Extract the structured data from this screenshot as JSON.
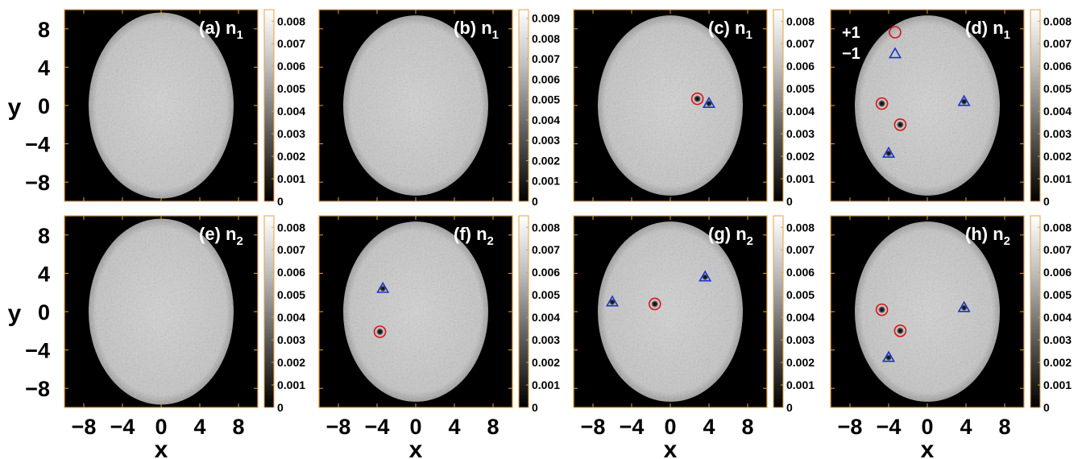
{
  "chart_data": {
    "type": "heatmap",
    "figure_layout": "2 rows x 4 columns",
    "colormap": "gray (black to white)",
    "frame_color": "#e8a33c",
    "x_axis_label": "x",
    "y_axis_label": "y",
    "xlim": [
      -10,
      10
    ],
    "ylim": [
      -10,
      10
    ],
    "x_ticks": [
      -8,
      -4,
      0,
      4,
      8
    ],
    "y_ticks": [
      8,
      4,
      0,
      -4,
      -8
    ],
    "x_tick_labels": [
      "−8",
      "−4",
      "0",
      "4",
      "8"
    ],
    "y_tick_labels": [
      "8",
      "4",
      "0",
      "−4",
      "−8"
    ],
    "legend": [
      {
        "label": "+1",
        "marker": "circle",
        "color": "#dd1111"
      },
      {
        "label": "−1",
        "marker": "triangle",
        "color": "#1a33cc"
      }
    ],
    "panels": [
      {
        "id": "a",
        "label": "(a) n",
        "sub": "1",
        "ellipse": {
          "cx": 0,
          "cy": 0,
          "rx": 7.5,
          "ry": 9.7
        },
        "colorbar_ticks": [
          "0.008",
          "0.007",
          "0.006",
          "0.005",
          "0.004",
          "0.003",
          "0.002",
          "0.001",
          "0"
        ],
        "vortices": [],
        "antivortices": []
      },
      {
        "id": "b",
        "label": "(b) n",
        "sub": "1",
        "ellipse": {
          "cx": 0,
          "cy": 0,
          "rx": 7.5,
          "ry": 9.4
        },
        "colorbar_ticks": [
          "0.009",
          "0.008",
          "0.007",
          "0.006",
          "0.005",
          "0.004",
          "0.003",
          "0.002",
          "0.001",
          "0"
        ],
        "vortices": [],
        "antivortices": []
      },
      {
        "id": "c",
        "label": "(c) n",
        "sub": "1",
        "ellipse": {
          "cx": 0,
          "cy": 0,
          "rx": 7.5,
          "ry": 9.4
        },
        "colorbar_ticks": [
          "0.008",
          "0.007",
          "0.006",
          "0.005",
          "0.004",
          "0.003",
          "0.002",
          "0.001",
          "0"
        ],
        "vortices": [
          [
            2.8,
            0.7
          ]
        ],
        "antivortices": [
          [
            4.0,
            0.2
          ]
        ]
      },
      {
        "id": "d",
        "label": "(d) n",
        "sub": "1",
        "ellipse": {
          "cx": 0,
          "cy": 0,
          "rx": 7.5,
          "ry": 9.4
        },
        "colorbar_ticks": [
          "0.008",
          "0.007",
          "0.006",
          "0.005",
          "0.004",
          "0.003",
          "0.002",
          "0.001",
          "0"
        ],
        "vortices": [
          [
            -4.7,
            0.2
          ],
          [
            -2.8,
            -2.0
          ]
        ],
        "antivortices": [
          [
            3.8,
            0.4
          ],
          [
            -4.0,
            -5.0
          ]
        ],
        "legend_markers": true
      },
      {
        "id": "e",
        "label": "(e) n",
        "sub": "2",
        "ellipse": {
          "cx": 0,
          "cy": 0,
          "rx": 7.5,
          "ry": 9.7
        },
        "colorbar_ticks": [
          "0.008",
          "0.007",
          "0.006",
          "0.005",
          "0.004",
          "0.003",
          "0.002",
          "0.001",
          "0"
        ],
        "vortices": [],
        "antivortices": []
      },
      {
        "id": "f",
        "label": "(f) n",
        "sub": "2",
        "ellipse": {
          "cx": 0,
          "cy": 0,
          "rx": 7.5,
          "ry": 9.4
        },
        "colorbar_ticks": [
          "0.008",
          "0.007",
          "0.006",
          "0.005",
          "0.004",
          "0.003",
          "0.002",
          "0.001",
          "0"
        ],
        "vortices": [
          [
            -3.7,
            -2.1
          ]
        ],
        "antivortices": [
          [
            -3.4,
            2.4
          ]
        ]
      },
      {
        "id": "g",
        "label": "(g) n",
        "sub": "2",
        "ellipse": {
          "cx": 0,
          "cy": 0,
          "rx": 7.5,
          "ry": 9.4
        },
        "colorbar_ticks": [
          "0.008",
          "0.007",
          "0.006",
          "0.005",
          "0.004",
          "0.003",
          "0.002",
          "0.001",
          "0"
        ],
        "vortices": [
          [
            -1.6,
            0.8
          ]
        ],
        "antivortices": [
          [
            -6.0,
            1.0
          ],
          [
            3.6,
            3.6
          ]
        ]
      },
      {
        "id": "h",
        "label": "(h) n",
        "sub": "2",
        "ellipse": {
          "cx": 0,
          "cy": 0,
          "rx": 7.5,
          "ry": 9.4
        },
        "colorbar_ticks": [
          "0.008",
          "0.007",
          "0.006",
          "0.005",
          "0.004",
          "0.003",
          "0.002",
          "0.001",
          "0"
        ],
        "vortices": [
          [
            -4.7,
            0.2
          ],
          [
            -2.8,
            -2.0
          ]
        ],
        "antivortices": [
          [
            3.8,
            0.4
          ],
          [
            -4.0,
            -4.8
          ]
        ]
      }
    ]
  }
}
